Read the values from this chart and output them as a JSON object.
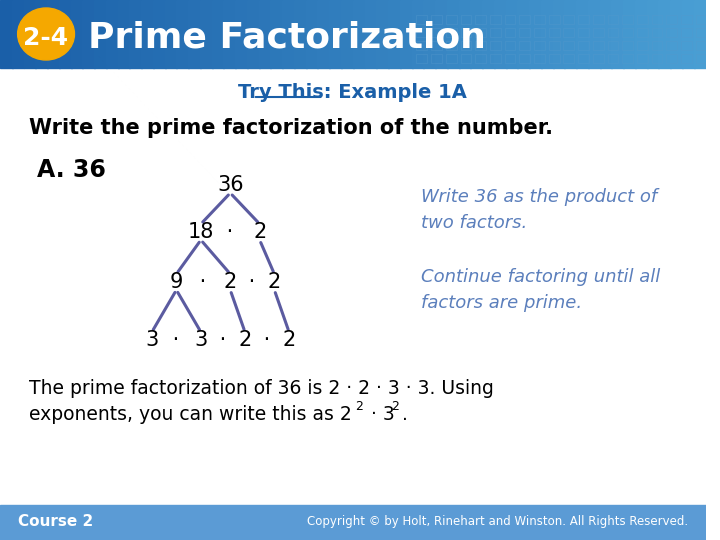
{
  "title_badge": "2-4",
  "title_text": "Prime Factorization",
  "subtitle": "Try This: Example 1A",
  "instruction": "Write the prime factorization of the number.",
  "label_a": "A. 36",
  "tree_note1": "Write 36 as the product of\ntwo factors.",
  "tree_note2": "Continue factoring until all\nfactors are prime.",
  "bottom_line1": "The prime factorization of 36 is 2 · 2 · 3 · 3. Using",
  "bottom_line2": "exponents, you can write this as 2",
  "bottom_line2_sup": "2",
  "bottom_line2_mid": " · 3",
  "bottom_line2_sup2": "2",
  "bottom_line2_end": ".",
  "footer_left": "Course 2",
  "footer_right": "Copyright © by Holt, Rinehart and Winston. All Rights Reserved.",
  "header_bg_color1": "#1a5fa8",
  "header_bg_color2": "#4a9fd4",
  "badge_color": "#f5a800",
  "title_color": "#ffffff",
  "subtitle_color": "#1a5fa8",
  "instruction_color": "#000000",
  "label_color": "#000000",
  "note_color": "#5b7fbc",
  "body_bg": "#ffffff",
  "footer_bg": "#5b9bd5",
  "footer_text_color": "#ffffff",
  "tree_color": "#5b5ba0",
  "bottom_text_color": "#000000"
}
